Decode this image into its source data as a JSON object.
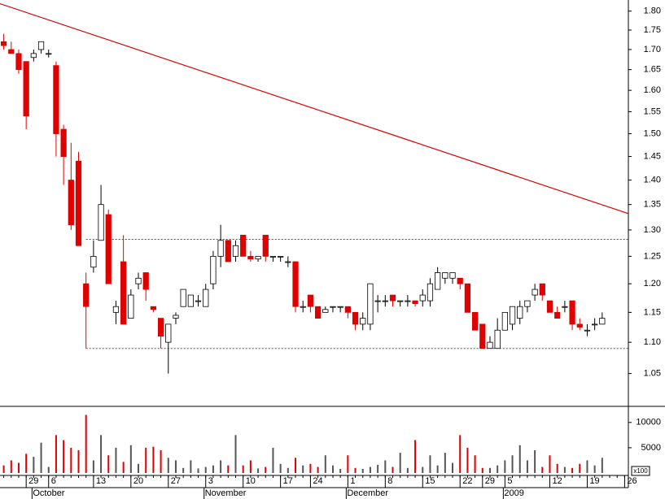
{
  "chart_data": {
    "type": "candlestick",
    "log": true,
    "categories": [
      null,
      null,
      null,
      "29",
      null,
      null,
      "6",
      null,
      null,
      null,
      null,
      null,
      "13",
      null,
      null,
      null,
      null,
      "20",
      null,
      null,
      null,
      null,
      "27",
      null,
      null,
      null,
      null,
      "3",
      null,
      null,
      null,
      null,
      "10",
      null,
      null,
      null,
      null,
      "17",
      null,
      null,
      null,
      "24",
      null,
      null,
      null,
      null,
      "1",
      null,
      null,
      null,
      null,
      "8",
      null,
      null,
      null,
      null,
      "15",
      null,
      null,
      null,
      null,
      "22",
      null,
      null,
      "29",
      null,
      null,
      "5",
      null,
      null,
      null,
      null,
      null,
      "12",
      null,
      null,
      null,
      null,
      "19",
      null,
      null,
      null,
      null,
      "26"
    ],
    "months": [
      null,
      null,
      null,
      null,
      "October",
      null,
      null,
      null,
      null,
      null,
      null,
      null,
      null,
      null,
      null,
      null,
      null,
      null,
      null,
      null,
      null,
      null,
      null,
      null,
      null,
      null,
      null,
      "November",
      null,
      null,
      null,
      null,
      null,
      null,
      null,
      null,
      null,
      null,
      null,
      null,
      null,
      null,
      null,
      null,
      null,
      null,
      "December",
      null,
      null,
      null,
      null,
      null,
      null,
      null,
      null,
      null,
      null,
      null,
      null,
      null,
      null,
      null,
      null,
      null,
      null,
      null,
      null,
      "2009",
      null,
      null,
      null,
      null,
      null,
      null,
      null,
      null,
      null,
      null,
      null,
      null,
      null,
      null,
      null,
      null
    ],
    "open": [
      1.72,
      1.7,
      1.69,
      1.67,
      1.68,
      1.7,
      1.69,
      1.66,
      1.51,
      1.4,
      1.44,
      1.2,
      1.23,
      1.28,
      1.33,
      1.15,
      1.24,
      1.14,
      1.2,
      1.22,
      1.16,
      1.14,
      1.1,
      1.14,
      1.16,
      1.16,
      1.17,
      1.16,
      1.2,
      1.25,
      1.28,
      1.25,
      1.29,
      1.25,
      1.245,
      1.29,
      1.25,
      1.25,
      1.24,
      1.24,
      1.16,
      1.18,
      1.16,
      1.15,
      1.16,
      1.16,
      1.16,
      1.15,
      1.13,
      1.13,
      1.17,
      1.17,
      1.18,
      1.17,
      1.17,
      1.17,
      1.17,
      1.17,
      1.19,
      1.21,
      1.21,
      1.21,
      1.2,
      1.15,
      1.13,
      1.09,
      1.09,
      1.12,
      1.13,
      1.14,
      1.16,
      1.18,
      1.2,
      1.17,
      1.15,
      1.16,
      1.17,
      1.13,
      1.12,
      1.13,
      1.13,
      null,
      null,
      null
    ],
    "high": [
      1.74,
      1.72,
      1.7,
      1.67,
      1.7,
      1.72,
      1.7,
      1.67,
      1.52,
      1.48,
      1.46,
      1.22,
      1.28,
      1.39,
      1.34,
      1.17,
      1.29,
      1.19,
      1.22,
      1.22,
      1.16,
      1.14,
      1.13,
      1.15,
      1.19,
      1.18,
      1.18,
      1.2,
      1.26,
      1.31,
      1.28,
      1.28,
      1.29,
      1.26,
      1.25,
      1.29,
      1.25,
      1.25,
      1.25,
      1.24,
      1.17,
      1.18,
      1.16,
      1.16,
      1.16,
      1.16,
      1.16,
      1.15,
      1.15,
      1.2,
      1.18,
      1.18,
      1.18,
      1.17,
      1.18,
      1.17,
      1.19,
      1.21,
      1.23,
      1.22,
      1.22,
      1.21,
      1.2,
      1.15,
      1.13,
      1.11,
      1.14,
      1.15,
      1.16,
      1.17,
      1.17,
      1.2,
      1.2,
      1.17,
      1.16,
      1.17,
      1.17,
      1.14,
      1.13,
      1.14,
      1.15,
      null,
      null,
      null
    ],
    "low": [
      1.7,
      1.69,
      1.64,
      1.51,
      1.67,
      1.69,
      1.68,
      1.45,
      1.39,
      1.3,
      1.27,
      1.09,
      1.22,
      1.28,
      1.2,
      1.13,
      1.13,
      1.14,
      1.19,
      1.17,
      1.15,
      1.09,
      1.05,
      1.13,
      1.16,
      1.16,
      1.16,
      1.16,
      1.19,
      1.23,
      1.24,
      1.24,
      1.25,
      1.24,
      1.24,
      1.24,
      1.24,
      1.24,
      1.23,
      1.15,
      1.15,
      1.15,
      1.14,
      1.15,
      1.15,
      1.15,
      1.14,
      1.12,
      1.12,
      1.12,
      1.15,
      1.16,
      1.16,
      1.16,
      1.16,
      1.16,
      1.16,
      1.16,
      1.19,
      1.2,
      1.2,
      1.19,
      1.15,
      1.12,
      1.09,
      1.09,
      1.09,
      1.12,
      1.12,
      1.13,
      1.15,
      1.17,
      1.17,
      1.15,
      1.14,
      1.15,
      1.12,
      1.12,
      1.11,
      1.12,
      1.13,
      null,
      null,
      null
    ],
    "close": [
      1.71,
      1.69,
      1.65,
      1.54,
      1.69,
      1.72,
      1.69,
      1.5,
      1.45,
      1.31,
      1.27,
      1.16,
      1.25,
      1.35,
      1.2,
      1.16,
      1.13,
      1.18,
      1.21,
      1.19,
      1.155,
      1.11,
      1.13,
      1.145,
      1.19,
      1.18,
      1.17,
      1.19,
      1.25,
      1.28,
      1.24,
      1.27,
      1.25,
      1.245,
      1.25,
      1.25,
      1.25,
      1.25,
      1.24,
      1.16,
      1.16,
      1.16,
      1.14,
      1.155,
      1.16,
      1.16,
      1.15,
      1.13,
      1.14,
      1.2,
      1.17,
      1.17,
      1.17,
      1.17,
      1.17,
      1.165,
      1.18,
      1.2,
      1.22,
      1.22,
      1.22,
      1.2,
      1.15,
      1.12,
      1.09,
      1.1,
      1.12,
      1.15,
      1.16,
      1.16,
      1.17,
      1.19,
      1.18,
      1.15,
      1.14,
      1.16,
      1.13,
      1.125,
      1.12,
      1.13,
      1.14,
      null,
      null,
      null
    ],
    "volume": [
      1500,
      2500,
      2000,
      3800,
      3200,
      6000,
      1200,
      7500,
      6500,
      5000,
      4500,
      11500,
      2500,
      7500,
      3500,
      5000,
      2200,
      5500,
      1800,
      5000,
      5200,
      4500,
      3000,
      2500,
      1000,
      2500,
      900,
      1200,
      1500,
      2500,
      1500,
      7500,
      1500,
      2500,
      900,
      1200,
      5000,
      1800,
      1000,
      3000,
      1500,
      1800,
      1200,
      3500,
      1500,
      800,
      3500,
      1000,
      800,
      1200,
      1600,
      2500,
      1200,
      4000,
      1000,
      6500,
      1200,
      3500,
      1500,
      4000,
      2000,
      7500,
      5000,
      3500,
      1000,
      1000,
      1500,
      2500,
      3500,
      5500,
      2500,
      4500,
      1200,
      3500,
      1800,
      1200,
      1000,
      1800,
      2500,
      1500,
      3000,
      null,
      null,
      null
    ],
    "ylim": [
      1.0,
      1.83
    ],
    "yticks": [
      1.05,
      {
        "value": 1.1,
        "label": "1.10"
      },
      1.15,
      {
        "value": 1.2,
        "label": "1.20"
      },
      1.25,
      {
        "value": 1.3,
        "label": "1.30"
      },
      1.35,
      {
        "value": 1.4,
        "label": "1.40"
      },
      1.45,
      {
        "value": 1.5,
        "label": "1.50"
      },
      1.55,
      {
        "value": 1.6,
        "label": "1.60"
      },
      1.65,
      {
        "value": 1.7,
        "label": "1.70"
      },
      1.75,
      {
        "value": 1.8,
        "label": "1.80"
      }
    ],
    "volume_ylim": [
      0,
      12700
    ],
    "volume_yticks": [
      5000,
      10000
    ],
    "volume_unit": "x100",
    "trend_line": [
      1.82,
      1.332
    ],
    "levels": [
      1.282,
      1.09
    ],
    "colors": {
      "down": "#e00000",
      "up": "#ffffff",
      "volume_up": "#555555",
      "trend": "#e00000"
    }
  }
}
